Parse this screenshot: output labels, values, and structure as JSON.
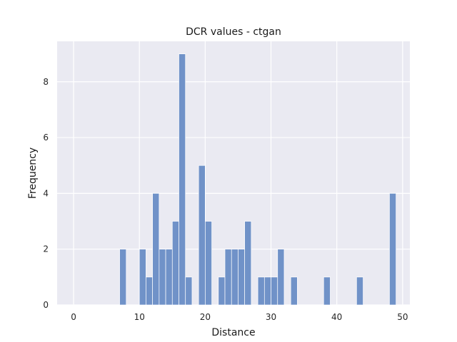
{
  "chart_data": {
    "type": "bar",
    "title": "DCR values - ctgan",
    "xlabel": "Distance",
    "ylabel": "Frequency",
    "xlim": [
      -2.5,
      51.1
    ],
    "ylim": [
      0,
      9.45
    ],
    "xticks": [
      0,
      10,
      20,
      30,
      40,
      50
    ],
    "yticks": [
      0,
      2,
      4,
      6,
      8
    ],
    "bin_width": 1.0,
    "grid": true,
    "background_color": "#EAEAF2",
    "grid_color": "#FFFFFF",
    "bar_color": "#7092C8",
    "bins": [
      {
        "x": 7.0,
        "count": 2
      },
      {
        "x": 10.0,
        "count": 2
      },
      {
        "x": 11.0,
        "count": 1
      },
      {
        "x": 12.0,
        "count": 4
      },
      {
        "x": 13.0,
        "count": 2
      },
      {
        "x": 14.0,
        "count": 2
      },
      {
        "x": 15.0,
        "count": 3
      },
      {
        "x": 16.0,
        "count": 9
      },
      {
        "x": 17.0,
        "count": 1
      },
      {
        "x": 19.0,
        "count": 5
      },
      {
        "x": 20.0,
        "count": 3
      },
      {
        "x": 22.0,
        "count": 1
      },
      {
        "x": 23.0,
        "count": 2
      },
      {
        "x": 24.0,
        "count": 2
      },
      {
        "x": 25.0,
        "count": 2
      },
      {
        "x": 26.0,
        "count": 3
      },
      {
        "x": 28.0,
        "count": 1
      },
      {
        "x": 29.0,
        "count": 1
      },
      {
        "x": 30.0,
        "count": 1
      },
      {
        "x": 31.0,
        "count": 2
      },
      {
        "x": 33.0,
        "count": 1
      },
      {
        "x": 38.0,
        "count": 1
      },
      {
        "x": 43.0,
        "count": 1
      },
      {
        "x": 48.0,
        "count": 4
      }
    ]
  }
}
